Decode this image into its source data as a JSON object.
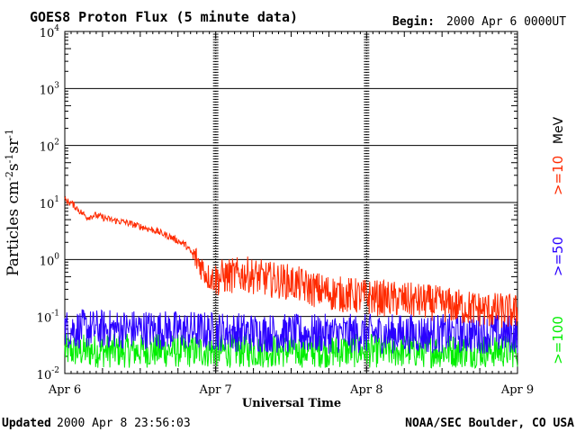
{
  "header": {
    "title": "GOES8 Proton Flux (5 minute data)",
    "begin_label": "Begin:",
    "begin_value": "2000 Apr 6 0000UT"
  },
  "footer": {
    "updated_label": "Updated",
    "updated_value": "2000 Apr  8 23:56:03",
    "credit": "NOAA/SEC Boulder, CO USA"
  },
  "legend": {
    "unit": "MeV",
    "items": [
      {
        "label": ">=10",
        "color": "#ff2a00"
      },
      {
        "label": ">=50",
        "color": "#2a00ff"
      },
      {
        "label": ">=100",
        "color": "#00ee00"
      }
    ]
  },
  "chart_data": {
    "type": "line",
    "title": "GOES8 Proton Flux (5 minute data)",
    "xlabel": "Universal Time",
    "ylabel": "Particles cm⁻²s⁻¹sr⁻¹",
    "ylabel_parts": {
      "base": "Particles cm",
      "e1": "-2",
      "s": "s",
      "e2": "-1",
      "sr": "sr",
      "e3": "-1"
    },
    "yscale": "log",
    "ylim": [
      0.01,
      10000
    ],
    "y_ticks": [
      {
        "base": "10",
        "exp": "-2"
      },
      {
        "base": "10",
        "exp": "-1"
      },
      {
        "base": "10",
        "exp": "0"
      },
      {
        "base": "10",
        "exp": "1"
      },
      {
        "base": "10",
        "exp": "2"
      },
      {
        "base": "10",
        "exp": "3"
      },
      {
        "base": "10",
        "exp": "4"
      }
    ],
    "x_range_days": [
      0,
      3
    ],
    "x_ticks": [
      "Apr 6",
      "Apr 7",
      "Apr 8",
      "Apr 9"
    ],
    "grid": true,
    "series": [
      {
        "name": ">=10 MeV",
        "color": "#ff2a00",
        "x_days": [
          0,
          0.05,
          0.1,
          0.15,
          0.2,
          0.3,
          0.4,
          0.5,
          0.6,
          0.7,
          0.8,
          0.85,
          0.9,
          0.95,
          1.0,
          1.05,
          1.2,
          1.35,
          1.5,
          1.65,
          1.8,
          2.0,
          2.2,
          2.4,
          2.6,
          2.8,
          3.0
        ],
        "y": [
          11,
          9.5,
          7,
          5.5,
          6,
          5,
          4.5,
          3.8,
          3.2,
          2.5,
          1.8,
          1.2,
          0.8,
          0.5,
          0.45,
          0.5,
          0.55,
          0.45,
          0.4,
          0.3,
          0.25,
          0.22,
          0.2,
          0.18,
          0.15,
          0.13,
          0.12
        ]
      },
      {
        "name": ">=50 MeV",
        "color": "#2a00ff",
        "x_days": [
          0,
          0.5,
          1.0,
          1.5,
          2.0,
          2.5,
          3.0
        ],
        "y": [
          0.06,
          0.06,
          0.055,
          0.05,
          0.05,
          0.05,
          0.05
        ]
      },
      {
        "name": ">=100 MeV",
        "color": "#00ee00",
        "x_days": [
          0,
          0.5,
          1.0,
          1.5,
          2.0,
          2.5,
          3.0
        ],
        "y": [
          0.025,
          0.025,
          0.025,
          0.025,
          0.025,
          0.025,
          0.025
        ]
      }
    ]
  }
}
